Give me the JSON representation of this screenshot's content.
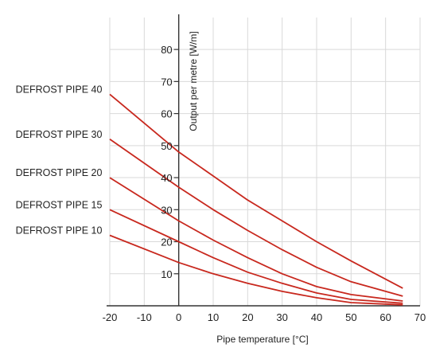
{
  "chart_data": {
    "type": "line",
    "title": "",
    "xlabel": "Pipe temperature [°C]",
    "ylabel": "Output per metre [W/m]",
    "xlim": [
      -20,
      70
    ],
    "ylim": [
      0,
      85
    ],
    "x_ticks": [
      -20,
      -10,
      0,
      10,
      20,
      30,
      40,
      50,
      60,
      70
    ],
    "y_ticks": [
      10,
      20,
      30,
      40,
      50,
      60,
      70,
      80
    ],
    "grid": true,
    "line_color": "#c8281e",
    "series": [
      {
        "name": "DEFROST PIPE 40",
        "x": [
          -20,
          0,
          10,
          20,
          30,
          40,
          50,
          65
        ],
        "y": [
          66,
          48,
          40.5,
          33,
          26.5,
          20,
          14,
          5.5
        ]
      },
      {
        "name": "DEFROST PIPE 30",
        "x": [
          -20,
          0,
          10,
          20,
          30,
          40,
          50,
          65
        ],
        "y": [
          52,
          37,
          30,
          23.5,
          17.5,
          12,
          7.5,
          3
        ]
      },
      {
        "name": "DEFROST PIPE 20",
        "x": [
          -20,
          0,
          10,
          20,
          30,
          40,
          50,
          65
        ],
        "y": [
          40,
          26.5,
          20.5,
          15,
          10,
          6,
          3.5,
          1.5
        ]
      },
      {
        "name": "DEFROST PIPE 15",
        "x": [
          -20,
          0,
          10,
          20,
          30,
          40,
          50,
          65
        ],
        "y": [
          30,
          20,
          15,
          10.5,
          7,
          4,
          2,
          0.8
        ]
      },
      {
        "name": "DEFROST PIPE 10",
        "x": [
          -20,
          0,
          10,
          20,
          30,
          40,
          50,
          65
        ],
        "y": [
          22,
          13.5,
          10,
          7,
          4.5,
          2.5,
          1,
          0.3
        ]
      }
    ]
  }
}
